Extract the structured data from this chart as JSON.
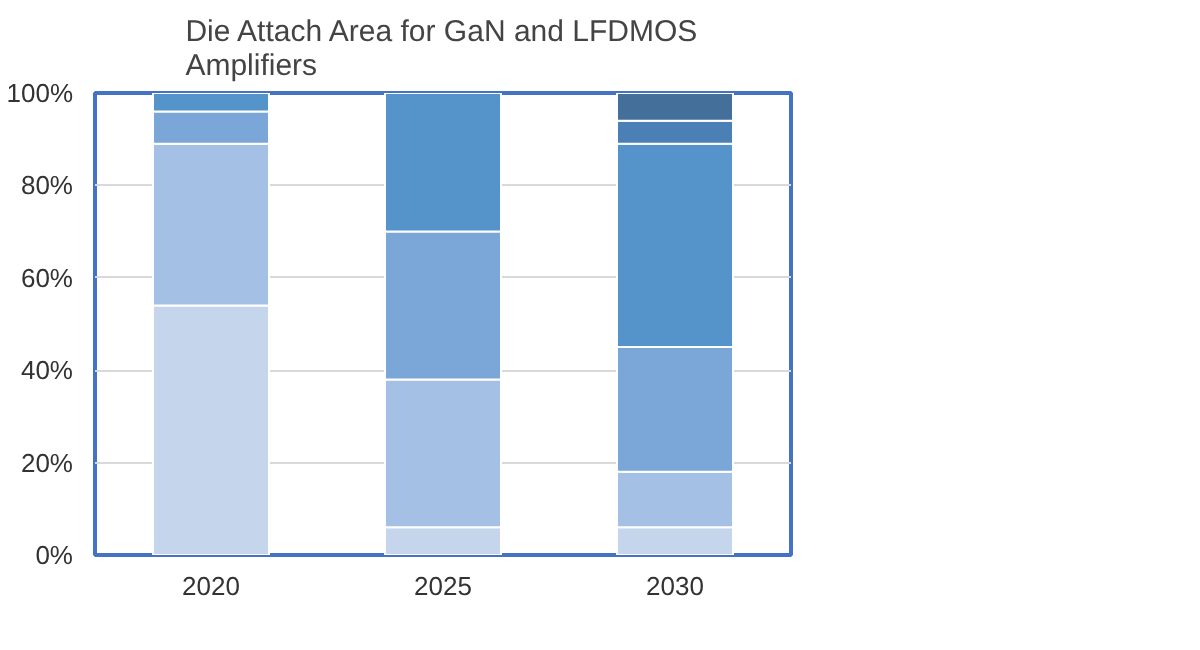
{
  "chart_data": {
    "type": "bar",
    "stacked": true,
    "title": "Die Attach Area for GaN and LFDMOS\nAmplifiers",
    "categories": [
      "2020",
      "2025",
      "2030"
    ],
    "series": [
      {
        "color": "#c5d5ec",
        "values": [
          54,
          6,
          6
        ]
      },
      {
        "color": "#a4c0e4",
        "values": [
          35,
          32,
          12
        ]
      },
      {
        "color": "#7ba7d8",
        "values": [
          7,
          32,
          27
        ]
      },
      {
        "color": "#5593cb",
        "values": [
          4,
          30,
          44
        ]
      },
      {
        "color": "#4a80b6",
        "values": [
          0,
          0,
          5
        ]
      },
      {
        "color": "#436f9a",
        "values": [
          0,
          0,
          6
        ]
      }
    ],
    "ylim": [
      0,
      100
    ],
    "yticks": [
      {
        "value": 0,
        "label": "0%"
      },
      {
        "value": 20,
        "label": "20%"
      },
      {
        "value": 40,
        "label": "40%"
      },
      {
        "value": 60,
        "label": "60%"
      },
      {
        "value": 80,
        "label": "80%"
      },
      {
        "value": 100,
        "label": "100%"
      }
    ],
    "grid": "y"
  }
}
